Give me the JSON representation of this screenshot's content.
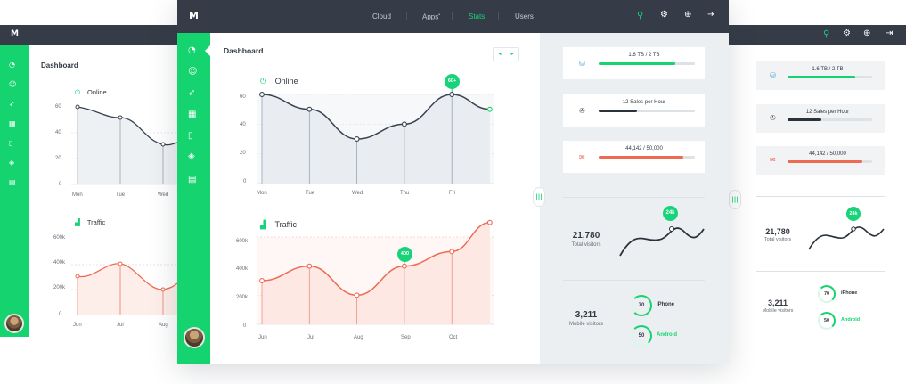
{
  "app": {
    "logo": "M",
    "nav": [
      {
        "label": "Cloud",
        "active": false
      },
      {
        "label": "Apps",
        "active": false,
        "sup": "•"
      },
      {
        "label": "Stats",
        "active": true
      },
      {
        "label": "Users",
        "active": false
      }
    ],
    "toolbar_icons": [
      "search-icon",
      "gear-icon",
      "globe-icon",
      "logout-icon"
    ],
    "sidebar_icons": [
      "gauge-icon",
      "user-icon",
      "rocket-icon",
      "calendar-icon",
      "document-icon",
      "tag-icon",
      "trash-icon"
    ],
    "colors": {
      "accent": "#15d46f",
      "topbar": "#353c47",
      "online_line": "#3a4250",
      "traffic_line": "#ee6a52"
    }
  },
  "dashboard": {
    "title": "Dashboard",
    "pager": {
      "prev": "◂",
      "next": "▸"
    }
  },
  "online_chart": {
    "label": "Online",
    "icon": "power-icon",
    "y_ticks": [
      "60",
      "40",
      "20",
      "0"
    ],
    "x_ticks": [
      "Mon",
      "Tue",
      "Wed",
      "Thu",
      "Fri"
    ],
    "badge": "60+"
  },
  "traffic_chart": {
    "label": "Traffic",
    "icon": "bar-chart-icon",
    "y_ticks": [
      "600k",
      "400k",
      "200k",
      "0"
    ],
    "x_ticks": [
      "Jun",
      "Jul",
      "Aug",
      "Sep",
      "Oct"
    ],
    "badge": "400"
  },
  "left_clone": {
    "title": "Dashboard",
    "online_label": "Online",
    "online_y_ticks": [
      "60",
      "40",
      "20",
      "0"
    ],
    "online_x_ticks": [
      "Mon",
      "Tue",
      "Wed"
    ],
    "traffic_label": "Traffic",
    "traffic_y_ticks": [
      "600k",
      "400k",
      "200k",
      "0"
    ],
    "traffic_x_ticks": [
      "Jun",
      "Jul",
      "Aug"
    ]
  },
  "stats": {
    "storage": {
      "label": "1.6 TB / 2 TB",
      "fraction": 0.8,
      "color": "#15d46f",
      "icon": "database-icon"
    },
    "sales": {
      "label": "12 Sales per Hour",
      "fraction": 0.4,
      "color": "#2b323c",
      "icon": "tape-icon"
    },
    "visits": {
      "label": "44,142 / 50,000",
      "fraction": 0.88,
      "color": "#ee6a52",
      "icon": "mail-icon"
    },
    "visitors": {
      "value": "21,780",
      "label": "Total visitors",
      "badge": "24k"
    },
    "mobile": {
      "value": "3,211",
      "label": "Mobile visitors",
      "iphone": {
        "value": "70",
        "label": "iPhone",
        "fraction": 0.7
      },
      "android": {
        "value": "50",
        "label": "Android",
        "fraction": 0.5
      }
    },
    "handle": "|||"
  },
  "chart_data": [
    {
      "type": "line",
      "title": "Online",
      "categories": [
        "Mon",
        "Tue",
        "Wed",
        "Thu",
        "Fri"
      ],
      "x": [
        0,
        1,
        2,
        3,
        4,
        4.8
      ],
      "values": [
        60,
        50,
        30,
        40,
        60,
        50
      ],
      "ylim": [
        0,
        60
      ],
      "badge": {
        "x": 4,
        "text": "60+"
      }
    },
    {
      "type": "area",
      "title": "Traffic",
      "categories": [
        "Jun",
        "Jul",
        "Aug",
        "Sep",
        "Oct"
      ],
      "x": [
        0,
        1,
        2,
        3,
        4,
        4.8
      ],
      "values": [
        300000,
        400000,
        200000,
        400000,
        500000,
        700000
      ],
      "ylim": [
        0,
        600000
      ],
      "badge": {
        "x": 3,
        "text": "400"
      }
    }
  ]
}
